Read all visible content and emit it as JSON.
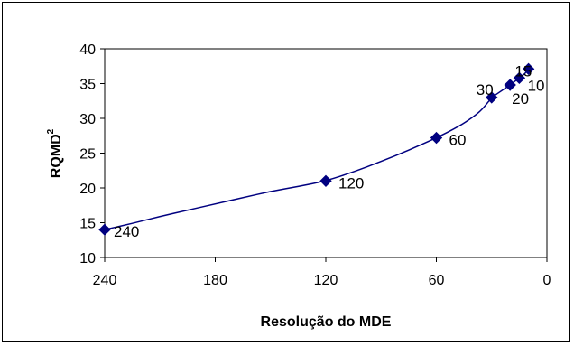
{
  "chart_data": {
    "type": "line",
    "title": "",
    "xlabel": "Resolução do MDE",
    "ylabel_main": "RQMD",
    "ylabel_sup": "2",
    "xlim": [
      240,
      0
    ],
    "ylim": [
      10,
      40
    ],
    "x_reversed": true,
    "x_ticks": [
      240,
      180,
      120,
      60,
      0
    ],
    "y_ticks": [
      10,
      15,
      20,
      25,
      30,
      35,
      40
    ],
    "grid": false,
    "legend": "none",
    "series": [
      {
        "marker": "diamond",
        "color": "#000080",
        "x": [
          240,
          120,
          60,
          30,
          20,
          15,
          10
        ],
        "y": [
          14,
          21,
          27.2,
          33,
          34.8,
          35.8,
          37.1
        ],
        "point_labels": [
          "240",
          "120",
          "60",
          "30",
          "20",
          "15",
          "10"
        ]
      }
    ],
    "curve_path": [
      [
        240,
        14
      ],
      [
        225,
        14.9
      ],
      [
        210,
        15.9
      ],
      [
        195,
        16.8
      ],
      [
        180,
        17.7
      ],
      [
        165,
        18.6
      ],
      [
        150,
        19.5
      ],
      [
        135,
        20.2
      ],
      [
        120,
        21
      ],
      [
        105,
        22.3
      ],
      [
        90,
        23.8
      ],
      [
        75,
        25.4
      ],
      [
        60,
        27.2
      ],
      [
        48,
        28.8
      ],
      [
        40,
        30.2
      ],
      [
        35,
        31.3
      ],
      [
        30,
        33
      ],
      [
        25,
        33.9
      ],
      [
        20,
        34.8
      ],
      [
        15,
        35.8
      ],
      [
        12,
        36.4
      ],
      [
        10,
        37.1
      ],
      [
        8,
        37.3
      ]
    ]
  }
}
